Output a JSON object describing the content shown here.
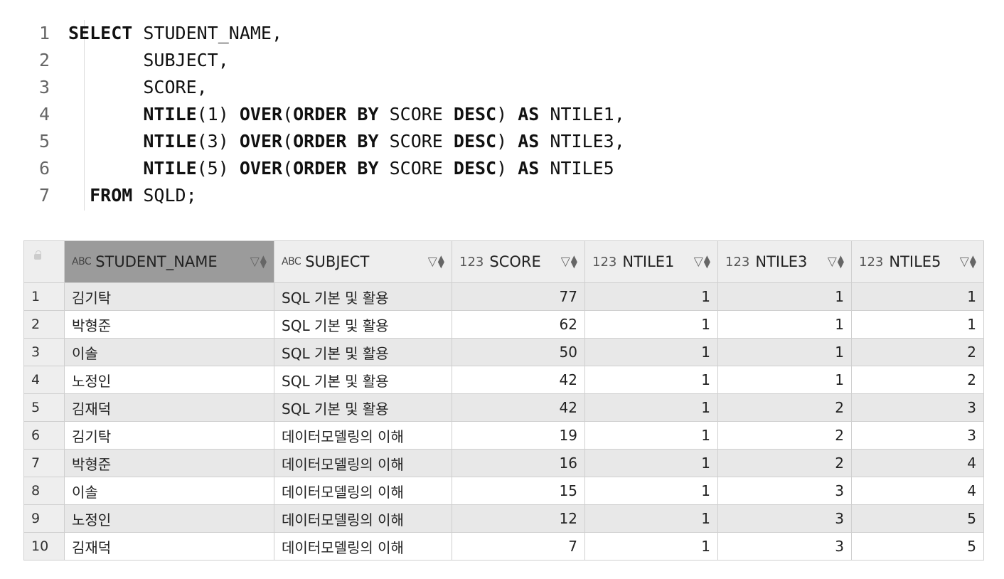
{
  "editor": {
    "lines": [
      {
        "n": "1",
        "indent": "",
        "tokens": [
          {
            "t": "SELECT",
            "kw": true
          },
          {
            "t": " STUDENT_NAME,",
            "kw": false
          }
        ]
      },
      {
        "n": "2",
        "indent": "       ",
        "tokens": [
          {
            "t": "SUBJECT,",
            "kw": false
          }
        ]
      },
      {
        "n": "3",
        "indent": "       ",
        "tokens": [
          {
            "t": "SCORE,",
            "kw": false
          }
        ]
      },
      {
        "n": "4",
        "indent": "       ",
        "tokens": [
          {
            "t": "NTILE",
            "kw": true
          },
          {
            "t": "(1) ",
            "kw": false
          },
          {
            "t": "OVER",
            "kw": true
          },
          {
            "t": "(",
            "kw": false
          },
          {
            "t": "ORDER BY",
            "kw": true
          },
          {
            "t": " SCORE ",
            "kw": false
          },
          {
            "t": "DESC",
            "kw": true
          },
          {
            "t": ") ",
            "kw": false
          },
          {
            "t": "AS",
            "kw": true
          },
          {
            "t": " NTILE1,",
            "kw": false
          }
        ]
      },
      {
        "n": "5",
        "indent": "       ",
        "tokens": [
          {
            "t": "NTILE",
            "kw": true
          },
          {
            "t": "(3) ",
            "kw": false
          },
          {
            "t": "OVER",
            "kw": true
          },
          {
            "t": "(",
            "kw": false
          },
          {
            "t": "ORDER BY",
            "kw": true
          },
          {
            "t": " SCORE ",
            "kw": false
          },
          {
            "t": "DESC",
            "kw": true
          },
          {
            "t": ") ",
            "kw": false
          },
          {
            "t": "AS",
            "kw": true
          },
          {
            "t": " NTILE3,",
            "kw": false
          }
        ]
      },
      {
        "n": "6",
        "indent": "       ",
        "tokens": [
          {
            "t": "NTILE",
            "kw": true
          },
          {
            "t": "(5) ",
            "kw": false
          },
          {
            "t": "OVER",
            "kw": true
          },
          {
            "t": "(",
            "kw": false
          },
          {
            "t": "ORDER BY",
            "kw": true
          },
          {
            "t": " SCORE ",
            "kw": false
          },
          {
            "t": "DESC",
            "kw": true
          },
          {
            "t": ") ",
            "kw": false
          },
          {
            "t": "AS",
            "kw": true
          },
          {
            "t": " NTILE5",
            "kw": false
          }
        ]
      },
      {
        "n": "7",
        "indent": "  ",
        "tokens": [
          {
            "t": "FROM",
            "kw": true
          },
          {
            "t": " SQLD;",
            "kw": false
          }
        ]
      }
    ]
  },
  "grid": {
    "columns": [
      {
        "name": "STUDENT_NAME",
        "type": "ABC",
        "align": "left",
        "width": 295,
        "selected": true
      },
      {
        "name": "SUBJECT",
        "type": "ABC",
        "align": "left",
        "width": 250,
        "selected": false
      },
      {
        "name": "SCORE",
        "type": "123",
        "align": "right",
        "width": 187,
        "selected": false
      },
      {
        "name": "NTILE1",
        "type": "123",
        "align": "right",
        "width": 187,
        "selected": false
      },
      {
        "name": "NTILE3",
        "type": "123",
        "align": "right",
        "width": 188,
        "selected": false
      },
      {
        "name": "NTILE5",
        "type": "123",
        "align": "right",
        "width": 186,
        "selected": false
      }
    ],
    "rows": [
      [
        "1",
        "김기탁",
        "SQL 기본 및 활용",
        "77",
        "1",
        "1",
        "1"
      ],
      [
        "2",
        "박형준",
        "SQL 기본 및 활용",
        "62",
        "1",
        "1",
        "1"
      ],
      [
        "3",
        "이솔",
        "SQL 기본 및 활용",
        "50",
        "1",
        "1",
        "2"
      ],
      [
        "4",
        "노정인",
        "SQL 기본 및 활용",
        "42",
        "1",
        "1",
        "2"
      ],
      [
        "5",
        "김재덕",
        "SQL 기본 및 활용",
        "42",
        "1",
        "2",
        "3"
      ],
      [
        "6",
        "김기탁",
        "데이터모델링의 이해",
        "19",
        "1",
        "2",
        "3"
      ],
      [
        "7",
        "박형준",
        "데이터모델링의 이해",
        "16",
        "1",
        "2",
        "4"
      ],
      [
        "8",
        "이솔",
        "데이터모델링의 이해",
        "15",
        "1",
        "3",
        "4"
      ],
      [
        "9",
        "노정인",
        "데이터모델링의 이해",
        "12",
        "1",
        "3",
        "5"
      ],
      [
        "10",
        "김재덕",
        "데이터모델링의 이해",
        "7",
        "1",
        "3",
        "5"
      ]
    ]
  }
}
